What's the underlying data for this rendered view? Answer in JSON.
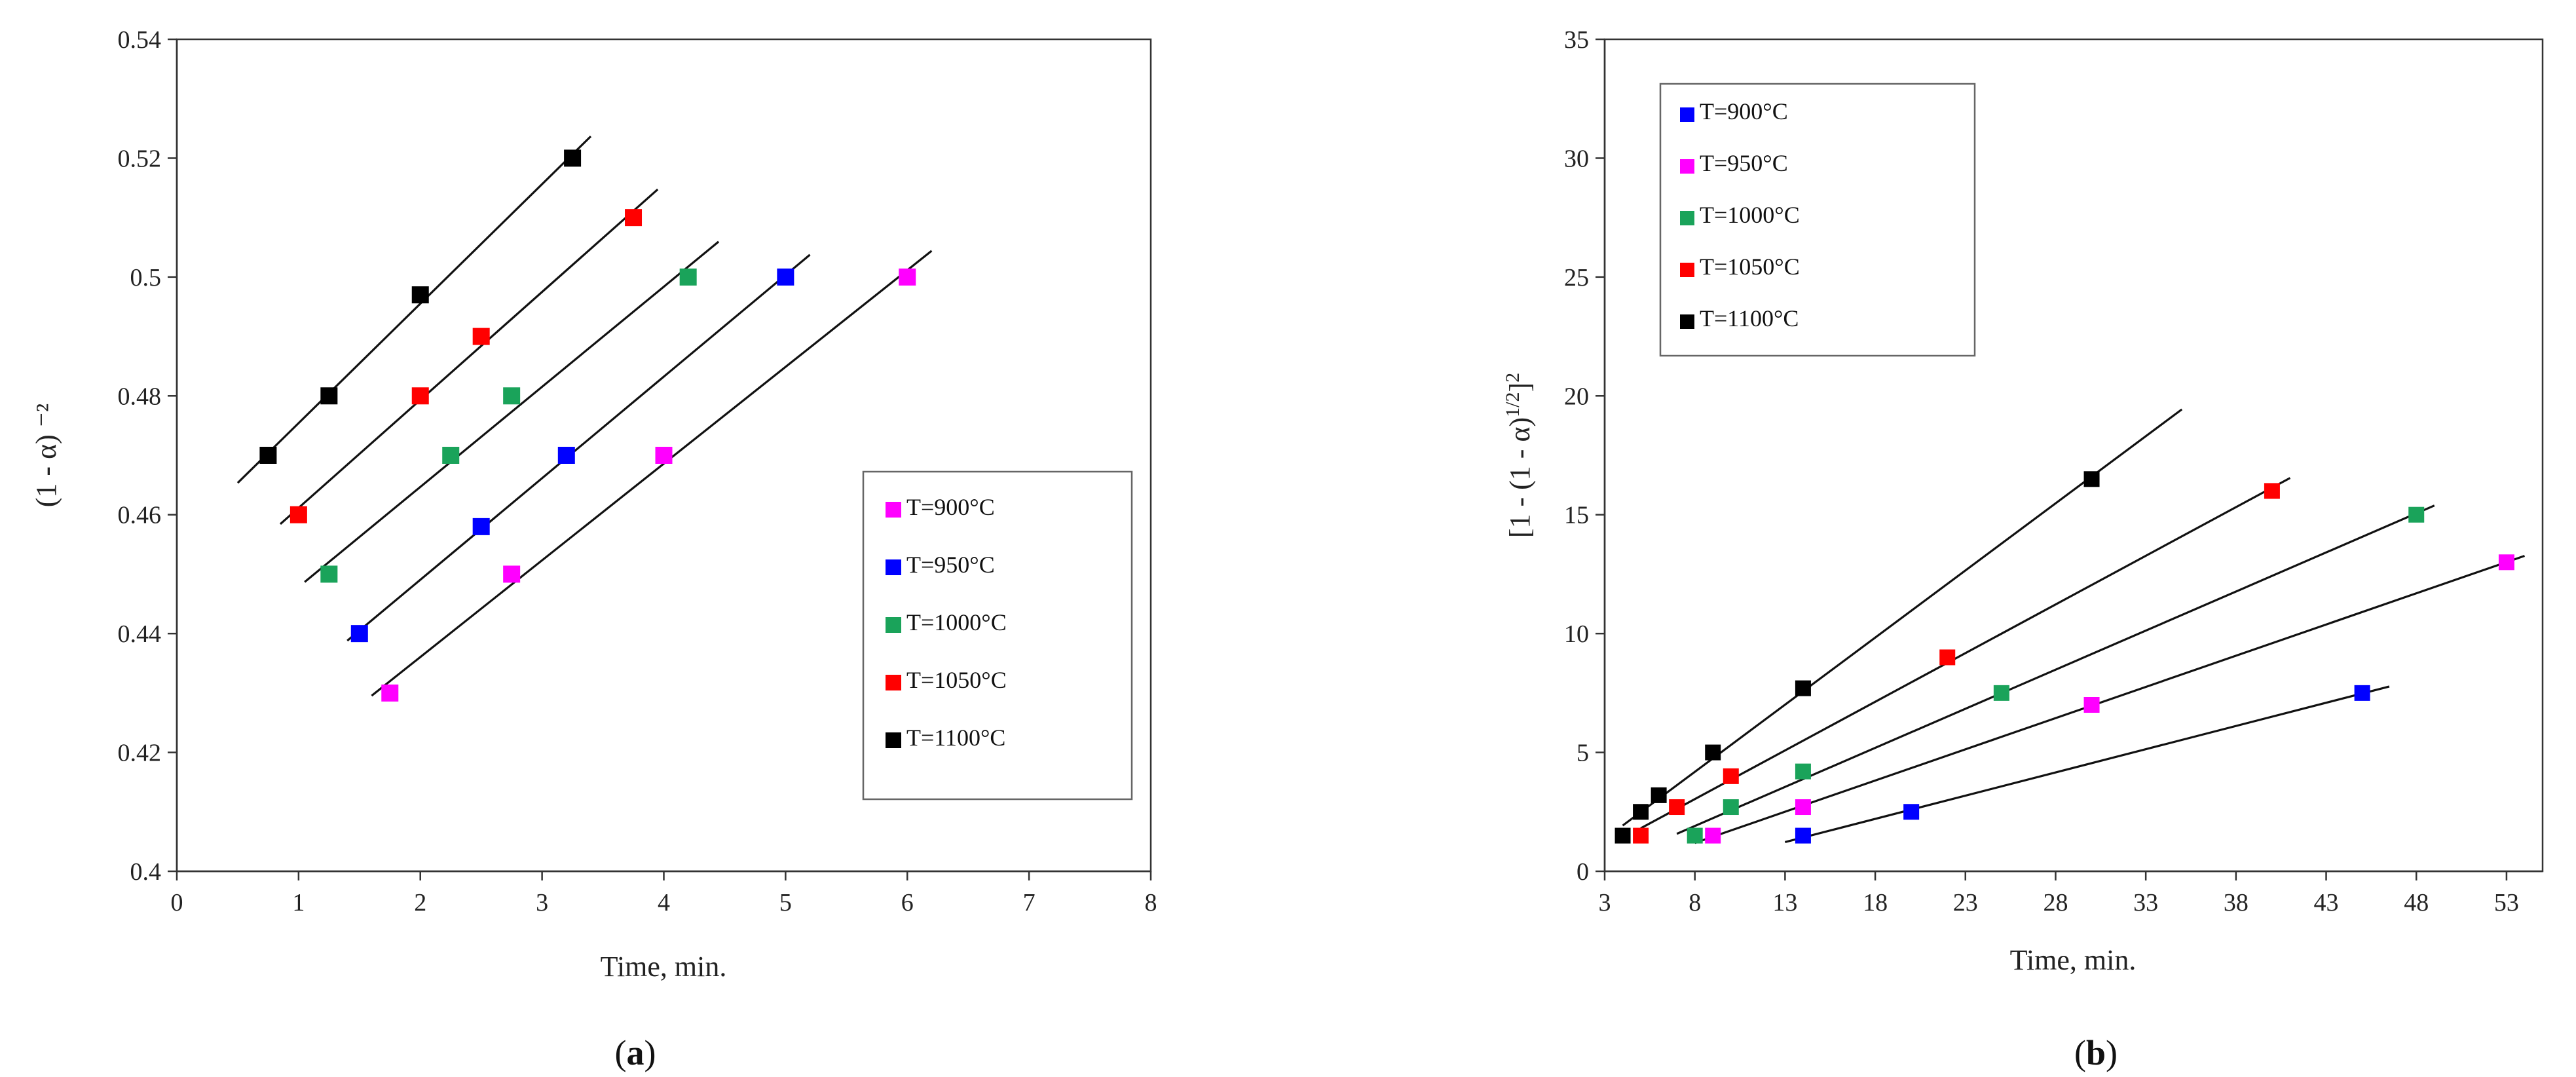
{
  "chart_data": [
    {
      "type": "scatter",
      "panel": "a",
      "caption": {
        "open": "(",
        "letter": "a",
        "close": ")"
      },
      "xlabel": "Time, min.",
      "ylabel": "(1 - α) ⁻²",
      "xlim": [
        0,
        8
      ],
      "ylim": [
        0.4,
        0.54
      ],
      "xticks": [
        "0",
        "1",
        "2",
        "3",
        "4",
        "5",
        "6",
        "7",
        "8"
      ],
      "yticks": [
        "0.4",
        "0.42",
        "0.44",
        "0.46",
        "0.48",
        "0.5",
        "0.52",
        "0.54"
      ],
      "legend_position": "right",
      "series": [
        {
          "name": "T=900°C",
          "color": "#ff00ff",
          "x": [
            1.75,
            2.75,
            4.0,
            6.0
          ],
          "y": [
            0.43,
            0.45,
            0.47,
            0.5
          ],
          "fit_x": [
            1.6,
            6.2
          ]
        },
        {
          "name": "T=950°C",
          "color": "#0000ff",
          "x": [
            1.5,
            2.5,
            3.2,
            5.0
          ],
          "y": [
            0.44,
            0.458,
            0.47,
            0.5
          ],
          "fit_x": [
            1.4,
            5.2
          ]
        },
        {
          "name": "T=1000°C",
          "color": "#1aa35a",
          "x": [
            1.25,
            2.25,
            2.75,
            4.2
          ],
          "y": [
            0.45,
            0.47,
            0.48,
            0.5
          ],
          "fit_x": [
            1.05,
            4.45
          ]
        },
        {
          "name": "T=1050°C",
          "color": "#ff0000",
          "x": [
            1.0,
            2.0,
            2.5,
            3.75
          ],
          "y": [
            0.46,
            0.48,
            0.49,
            0.51
          ],
          "fit_x": [
            0.85,
            3.95
          ]
        },
        {
          "name": "T=1100°C",
          "color": "#000000",
          "x": [
            0.75,
            1.25,
            2.0,
            3.25
          ],
          "y": [
            0.47,
            0.48,
            0.497,
            0.52
          ],
          "fit_x": [
            0.5,
            3.4
          ]
        }
      ]
    },
    {
      "type": "scatter",
      "panel": "b",
      "caption": {
        "open": "(",
        "letter": "b",
        "close": ")"
      },
      "xlabel": "Time, min.",
      "ylabel": "[1 - (1 - α)^1/2]^2",
      "ylabel_parts": {
        "main": "[1 - (1 - α)",
        "sup1": "1/2",
        "mid": "]",
        "sup2": "2"
      },
      "xlim": [
        3,
        55
      ],
      "ylim": [
        0,
        35
      ],
      "xticks": [
        "3",
        "8",
        "13",
        "18",
        "23",
        "28",
        "33",
        "38",
        "43",
        "48",
        "53"
      ],
      "yticks": [
        "0",
        "5",
        "10",
        "15",
        "20",
        "25",
        "30",
        "35"
      ],
      "legend_position": "top-left",
      "series": [
        {
          "name": "T=900°C",
          "color": "#0000ff",
          "x": [
            14,
            20,
            45
          ],
          "y": [
            1.5,
            2.5,
            7.5
          ],
          "fit_x": [
            13,
            46.5
          ]
        },
        {
          "name": "T=950°C",
          "color": "#ff00ff",
          "x": [
            9,
            14,
            30,
            53
          ],
          "y": [
            1.5,
            2.7,
            7.0,
            13.0
          ],
          "fit_x": [
            8,
            54
          ]
        },
        {
          "name": "T=1000°C",
          "color": "#1aa35a",
          "x": [
            8,
            10,
            14,
            25,
            48
          ],
          "y": [
            1.5,
            2.7,
            4.2,
            7.5,
            15.0
          ],
          "fit_x": [
            7,
            49
          ]
        },
        {
          "name": "T=1050°C",
          "color": "#ff0000",
          "x": [
            5,
            7,
            10,
            22,
            40
          ],
          "y": [
            1.5,
            2.7,
            4.0,
            9.0,
            16.0
          ],
          "fit_x": [
            5,
            41
          ]
        },
        {
          "name": "T=1100°C",
          "color": "#000000",
          "x": [
            4,
            5,
            6,
            9,
            14,
            30
          ],
          "y": [
            1.5,
            2.5,
            3.2,
            5.0,
            7.7,
            16.5
          ],
          "fit_x": [
            4,
            35
          ]
        }
      ]
    }
  ]
}
